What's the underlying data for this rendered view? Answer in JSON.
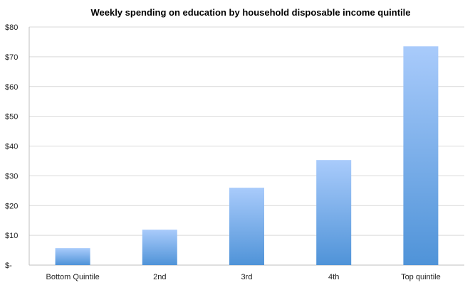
{
  "chart_data": {
    "type": "bar",
    "title": "Weekly spending on education by household disposable income quintile",
    "categories": [
      "Bottom Quintile",
      "2nd",
      "3rd",
      "4th",
      "Top quintile"
    ],
    "values": [
      5.7,
      11.9,
      26.0,
      35.3,
      73.5
    ],
    "ylim": [
      0,
      80
    ],
    "yticks": [
      0,
      10,
      20,
      30,
      40,
      50,
      60,
      70,
      80
    ],
    "ytick_labels": [
      "$-",
      "$10",
      "$20",
      "$30",
      "$40",
      "$50",
      "$60",
      "$70",
      "$80"
    ],
    "xlabel": "",
    "ylabel": "",
    "grid": true,
    "colors": {
      "bar_top": "#a9cbfb",
      "bar_bottom": "#4f93d8",
      "grid": "#d9d9d9"
    }
  }
}
